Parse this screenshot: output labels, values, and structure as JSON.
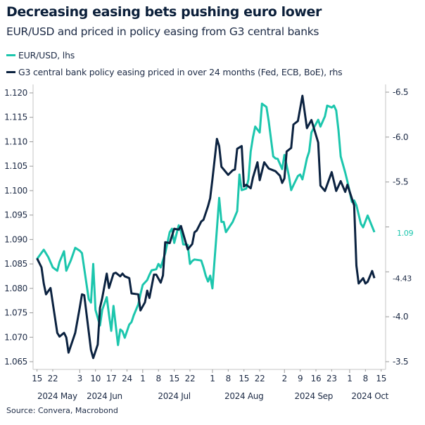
{
  "chart_data": {
    "type": "line",
    "title": "Decreasing easing bets pushing euro lower",
    "subtitle": "EUR/USD and priced in policy easing from G3 central banks",
    "source": "Source: Convera, Macrobond",
    "legend_placement": "top-left",
    "grid": false,
    "x_range": [
      "2024-05-15",
      "2024-10-15"
    ],
    "x_ticks_day": [
      "15",
      "22",
      "3",
      "10",
      "17",
      "24",
      "1",
      "8",
      "15",
      "22",
      "1",
      "8",
      "15",
      "22",
      "2",
      "9",
      "16",
      "23",
      "1",
      "8",
      "15"
    ],
    "x_ticks_dates": [
      "2024-05-15",
      "2024-05-22",
      "2024-06-03",
      "2024-06-10",
      "2024-06-17",
      "2024-06-24",
      "2024-07-01",
      "2024-07-08",
      "2024-07-15",
      "2024-07-22",
      "2024-08-01",
      "2024-08-08",
      "2024-08-15",
      "2024-08-22",
      "2024-09-02",
      "2024-09-09",
      "2024-09-16",
      "2024-09-23",
      "2024-10-01",
      "2024-10-08",
      "2024-10-15"
    ],
    "x_month_labels": [
      {
        "label": "2024 May",
        "date": "2024-05-24"
      },
      {
        "label": "2024 Jun",
        "date": "2024-06-14"
      },
      {
        "label": "2024 Jul",
        "date": "2024-07-15"
      },
      {
        "label": "2024 Aug",
        "date": "2024-08-15"
      },
      {
        "label": "2024 Sep",
        "date": "2024-09-15"
      },
      {
        "label": "2024 Oct",
        "date": "2024-10-10"
      }
    ],
    "y_left": {
      "range": [
        1.065,
        1.12
      ],
      "ticks": [
        "1.065",
        "1.070",
        "1.075",
        "1.080",
        "1.085",
        "1.090",
        "1.095",
        "1.100",
        "1.105",
        "1.110",
        "1.115",
        "1.120"
      ]
    },
    "y_right": {
      "range": [
        -6.5,
        -3.5
      ],
      "inverted": true,
      "ticks": [
        {
          "v": -6.5,
          "label": "-6.5"
        },
        {
          "v": -6.0,
          "label": "-6.0"
        },
        {
          "v": -5.5,
          "label": "-5.5"
        },
        {
          "v": -5.0,
          "label": ""
        },
        {
          "v": -4.5,
          "label": ""
        },
        {
          "v": -4.0,
          "label": "-4.0"
        },
        {
          "v": -3.5,
          "label": "-3.5"
        }
      ]
    },
    "series": [
      {
        "name": "EUR/USD, lhs",
        "axis": "left",
        "color": "#1cc6ad",
        "last_label": "1.09",
        "points": [
          [
            "2024-05-15",
            1.086
          ],
          [
            "2024-05-18",
            1.0879
          ],
          [
            "2024-05-20",
            1.0864
          ],
          [
            "2024-05-22",
            1.0843
          ],
          [
            "2024-05-24",
            1.0836
          ],
          [
            "2024-05-25",
            1.0854
          ],
          [
            "2024-05-27",
            1.0876
          ],
          [
            "2024-05-28",
            1.0836
          ],
          [
            "2024-05-30",
            1.0857
          ],
          [
            "2024-06-01",
            1.0883
          ],
          [
            "2024-06-03",
            1.0877
          ],
          [
            "2024-06-04",
            1.0872
          ],
          [
            "2024-06-07",
            1.0778
          ],
          [
            "2024-06-08",
            1.0771
          ],
          [
            "2024-06-09",
            1.085
          ],
          [
            "2024-06-10",
            1.0756
          ],
          [
            "2024-06-12",
            1.0724
          ],
          [
            "2024-06-13",
            1.0756
          ],
          [
            "2024-06-15",
            1.0782
          ],
          [
            "2024-06-16",
            1.0746
          ],
          [
            "2024-06-17",
            1.0713
          ],
          [
            "2024-06-18",
            1.0764
          ],
          [
            "2024-06-20",
            1.0684
          ],
          [
            "2024-06-21",
            1.0716
          ],
          [
            "2024-06-22",
            1.0712
          ],
          [
            "2024-06-23",
            1.0699
          ],
          [
            "2024-06-25",
            1.0726
          ],
          [
            "2024-06-26",
            1.0731
          ],
          [
            "2024-06-27",
            1.0745
          ],
          [
            "2024-06-29",
            1.0767
          ],
          [
            "2024-06-30",
            1.0788
          ],
          [
            "2024-07-01",
            1.0807
          ],
          [
            "2024-07-03",
            1.0817
          ],
          [
            "2024-07-04",
            1.0828
          ],
          [
            "2024-07-05",
            1.0837
          ],
          [
            "2024-07-07",
            1.0839
          ],
          [
            "2024-07-08",
            1.085
          ],
          [
            "2024-07-09",
            1.0843
          ],
          [
            "2024-07-11",
            1.0872
          ],
          [
            "2024-07-13",
            1.0915
          ],
          [
            "2024-07-14",
            1.0922
          ],
          [
            "2024-07-15",
            1.0893
          ],
          [
            "2024-07-17",
            1.0929
          ],
          [
            "2024-07-18",
            1.0916
          ],
          [
            "2024-07-19",
            1.089
          ],
          [
            "2024-07-21",
            1.0889
          ],
          [
            "2024-07-22",
            1.085
          ],
          [
            "2024-07-23",
            1.0856
          ],
          [
            "2024-07-24",
            1.0859
          ],
          [
            "2024-07-27",
            1.0857
          ],
          [
            "2024-07-28",
            1.0843
          ],
          [
            "2024-07-29",
            1.0826
          ],
          [
            "2024-07-30",
            1.0814
          ],
          [
            "2024-07-31",
            1.0826
          ],
          [
            "2024-08-01",
            1.08
          ],
          [
            "2024-08-03",
            1.0922
          ],
          [
            "2024-08-04",
            1.0985
          ],
          [
            "2024-08-05",
            1.0936
          ],
          [
            "2024-08-06",
            1.0936
          ],
          [
            "2024-08-07",
            1.0915
          ],
          [
            "2024-08-09",
            1.0929
          ],
          [
            "2024-08-10",
            1.0936
          ],
          [
            "2024-08-12",
            1.0958
          ],
          [
            "2024-08-13",
            1.1033
          ],
          [
            "2024-08-14",
            1.1001
          ],
          [
            "2024-08-16",
            1.1004
          ],
          [
            "2024-08-17",
            1.1023
          ],
          [
            "2024-08-18",
            1.108
          ],
          [
            "2024-08-19",
            1.1109
          ],
          [
            "2024-08-20",
            1.1131
          ],
          [
            "2024-08-22",
            1.1119
          ],
          [
            "2024-08-23",
            1.1178
          ],
          [
            "2024-08-25",
            1.1171
          ],
          [
            "2024-08-26",
            1.1142
          ],
          [
            "2024-08-28",
            1.107
          ],
          [
            "2024-08-29",
            1.1066
          ],
          [
            "2024-08-30",
            1.1065
          ],
          [
            "2024-09-01",
            1.1044
          ],
          [
            "2024-09-02",
            1.1073
          ],
          [
            "2024-09-04",
            1.103
          ],
          [
            "2024-09-05",
            1.1001
          ],
          [
            "2024-09-06",
            1.1011
          ],
          [
            "2024-09-08",
            1.103
          ],
          [
            "2024-09-09",
            1.1033
          ],
          [
            "2024-09-10",
            1.1023
          ],
          [
            "2024-09-11",
            1.1044
          ],
          [
            "2024-09-12",
            1.1066
          ],
          [
            "2024-09-13",
            1.108
          ],
          [
            "2024-09-14",
            1.1119
          ],
          [
            "2024-09-15",
            1.1128
          ],
          [
            "2024-09-17",
            1.1145
          ],
          [
            "2024-09-18",
            1.1131
          ],
          [
            "2024-09-20",
            1.1152
          ],
          [
            "2024-09-21",
            1.1174
          ],
          [
            "2024-09-23",
            1.117
          ],
          [
            "2024-09-24",
            1.1174
          ],
          [
            "2024-09-25",
            1.1164
          ],
          [
            "2024-09-26",
            1.1124
          ],
          [
            "2024-09-27",
            1.107
          ],
          [
            "2024-09-29",
            1.1037
          ],
          [
            "2024-09-30",
            1.1019
          ],
          [
            "2024-10-02",
            1.0977
          ],
          [
            "2024-10-03",
            1.098
          ],
          [
            "2024-10-04",
            1.097
          ],
          [
            "2024-10-06",
            1.0932
          ],
          [
            "2024-10-07",
            1.0925
          ],
          [
            "2024-10-09",
            1.0949
          ],
          [
            "2024-10-12",
            1.0915
          ]
        ]
      },
      {
        "name": "G3 central bank policy easing priced in over 24 months (Fed, ECB, BoE), rhs",
        "axis": "right",
        "color": "#0b2240",
        "last_label": "-4.43",
        "points": [
          [
            "2024-05-15",
            -4.65
          ],
          [
            "2024-05-17",
            -4.55
          ],
          [
            "2024-05-18",
            -4.37
          ],
          [
            "2024-05-19",
            -4.25
          ],
          [
            "2024-05-21",
            -4.32
          ],
          [
            "2024-05-24",
            -3.82
          ],
          [
            "2024-05-25",
            -3.78
          ],
          [
            "2024-05-27",
            -3.82
          ],
          [
            "2024-05-28",
            -3.77
          ],
          [
            "2024-05-29",
            -3.6
          ],
          [
            "2024-06-01",
            -3.82
          ],
          [
            "2024-06-03",
            -4.1
          ],
          [
            "2024-06-04",
            -4.25
          ],
          [
            "2024-06-05",
            -4.24
          ],
          [
            "2024-06-08",
            -3.63
          ],
          [
            "2024-06-09",
            -3.54
          ],
          [
            "2024-06-11",
            -3.69
          ],
          [
            "2024-06-12",
            -4.1
          ],
          [
            "2024-06-13",
            -4.21
          ],
          [
            "2024-06-15",
            -4.48
          ],
          [
            "2024-06-16",
            -4.32
          ],
          [
            "2024-06-18",
            -4.48
          ],
          [
            "2024-06-19",
            -4.49
          ],
          [
            "2024-06-21",
            -4.45
          ],
          [
            "2024-06-22",
            -4.48
          ],
          [
            "2024-06-23",
            -4.45
          ],
          [
            "2024-06-25",
            -4.43
          ],
          [
            "2024-06-26",
            -4.26
          ],
          [
            "2024-06-29",
            -4.25
          ],
          [
            "2024-06-30",
            -4.07
          ],
          [
            "2024-07-02",
            -4.16
          ],
          [
            "2024-07-03",
            -4.29
          ],
          [
            "2024-07-04",
            -4.21
          ],
          [
            "2024-07-06",
            -4.47
          ],
          [
            "2024-07-07",
            -4.47
          ],
          [
            "2024-07-09",
            -4.38
          ],
          [
            "2024-07-10",
            -4.46
          ],
          [
            "2024-07-11",
            -4.83
          ],
          [
            "2024-07-13",
            -4.82
          ],
          [
            "2024-07-15",
            -4.98
          ],
          [
            "2024-07-17",
            -4.97
          ],
          [
            "2024-07-18",
            -5.01
          ],
          [
            "2024-07-21",
            -4.75
          ],
          [
            "2024-07-23",
            -4.81
          ],
          [
            "2024-07-24",
            -4.94
          ],
          [
            "2024-07-25",
            -4.96
          ],
          [
            "2024-07-27",
            -5.06
          ],
          [
            "2024-07-28",
            -5.08
          ],
          [
            "2024-07-30",
            -5.23
          ],
          [
            "2024-07-31",
            -5.32
          ],
          [
            "2024-08-01",
            -5.53
          ],
          [
            "2024-08-03",
            -5.98
          ],
          [
            "2024-08-04",
            -5.9
          ],
          [
            "2024-08-05",
            -5.67
          ],
          [
            "2024-08-08",
            -5.58
          ],
          [
            "2024-08-10",
            -5.63
          ],
          [
            "2024-08-11",
            -5.64
          ],
          [
            "2024-08-12",
            -5.87
          ],
          [
            "2024-08-14",
            -5.9
          ],
          [
            "2024-08-15",
            -5.45
          ],
          [
            "2024-08-16",
            -5.47
          ],
          [
            "2024-08-18",
            -5.43
          ],
          [
            "2024-08-19",
            -5.55
          ],
          [
            "2024-08-21",
            -5.72
          ],
          [
            "2024-08-22",
            -5.52
          ],
          [
            "2024-08-24",
            -5.72
          ],
          [
            "2024-08-26",
            -5.65
          ],
          [
            "2024-08-29",
            -5.62
          ],
          [
            "2024-08-31",
            -5.57
          ],
          [
            "2024-09-01",
            -5.49
          ],
          [
            "2024-09-02",
            -5.54
          ],
          [
            "2024-09-03",
            -5.84
          ],
          [
            "2024-09-05",
            -5.88
          ],
          [
            "2024-09-06",
            -6.14
          ],
          [
            "2024-09-08",
            -6.18
          ],
          [
            "2024-09-10",
            -6.46
          ],
          [
            "2024-09-12",
            -6.1
          ],
          [
            "2024-09-14",
            -6.19
          ],
          [
            "2024-09-17",
            -5.94
          ],
          [
            "2024-09-18",
            -5.46
          ],
          [
            "2024-09-20",
            -5.4
          ],
          [
            "2024-09-23",
            -5.61
          ],
          [
            "2024-09-25",
            -5.4
          ],
          [
            "2024-09-27",
            -5.51
          ],
          [
            "2024-09-29",
            -5.39
          ],
          [
            "2024-09-30",
            -5.47
          ],
          [
            "2024-10-03",
            -5.24
          ],
          [
            "2024-10-04",
            -4.57
          ],
          [
            "2024-10-05",
            -4.37
          ],
          [
            "2024-10-07",
            -4.43
          ],
          [
            "2024-10-08",
            -4.37
          ],
          [
            "2024-10-09",
            -4.39
          ],
          [
            "2024-10-11",
            -4.51
          ],
          [
            "2024-10-12",
            -4.43
          ]
        ]
      }
    ]
  }
}
